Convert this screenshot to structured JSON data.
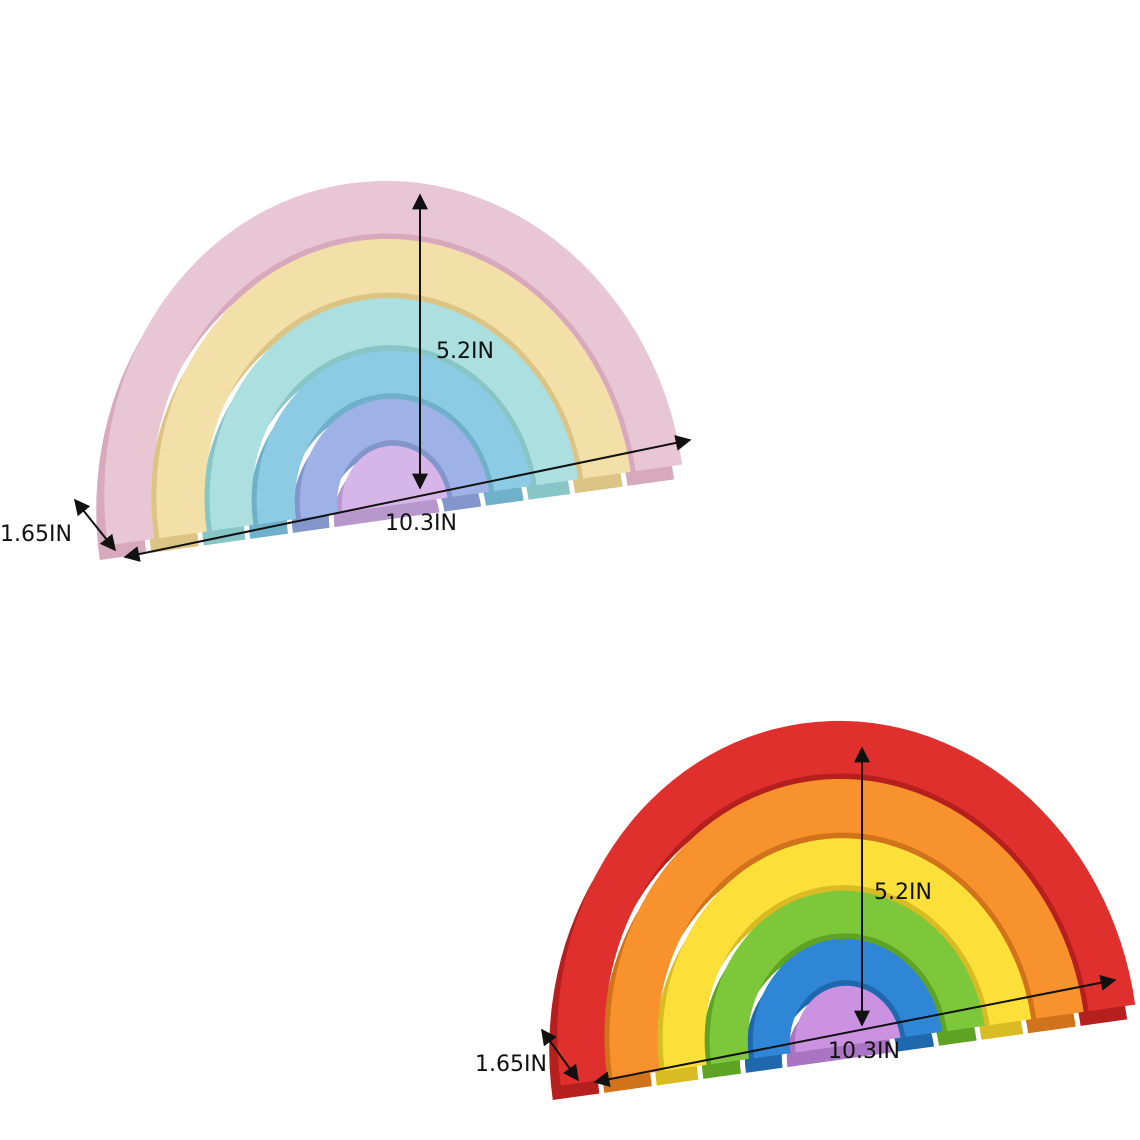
{
  "products": [
    {
      "height_label": "5.2IN",
      "width_label": "10.3IN",
      "depth_label": "1.65IN"
    },
    {
      "height_label": "5.2IN",
      "width_label": "10.3IN",
      "depth_label": "1.65IN"
    }
  ]
}
